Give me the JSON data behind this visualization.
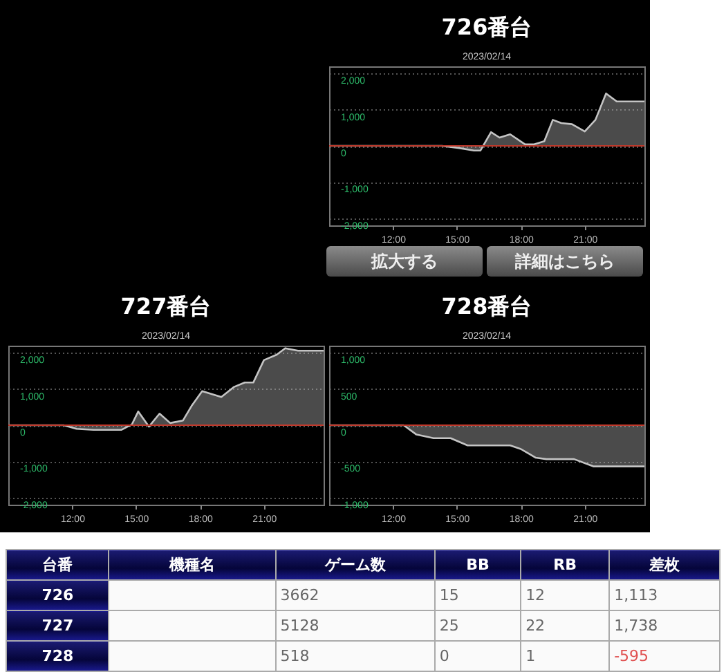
{
  "chart_data": [
    {
      "type": "area",
      "title": "726番台",
      "subtitle": "2023/02/14",
      "x": [
        9,
        14.3,
        15.1,
        15.8,
        16.1,
        16.6,
        17.0,
        17.5,
        18.2,
        18.6,
        19.1,
        19.5,
        19.9,
        20.4,
        21.0,
        21.5,
        22.0,
        22.5,
        23.8
      ],
      "series": [
        {
          "color": "#c4c4c4",
          "values": [
            0,
            0,
            -60,
            -130,
            -130,
            380,
            230,
            320,
            40,
            40,
            130,
            720,
            630,
            600,
            400,
            720,
            1450,
            1230,
            1230
          ]
        }
      ],
      "xlim": [
        9,
        23.8
      ],
      "xticks": [
        {
          "value": 12,
          "label": "12:00"
        },
        {
          "value": 15,
          "label": "15:00"
        },
        {
          "value": 18,
          "label": "18:00"
        },
        {
          "value": 21,
          "label": "21:00"
        }
      ],
      "ylim": [
        -2200,
        2200
      ],
      "yticks": [
        {
          "value": -2000,
          "label": "-2,000"
        },
        {
          "value": -1000,
          "label": "-1,000"
        },
        0,
        {
          "value": 1000,
          "label": "1,000"
        },
        {
          "value": 2000,
          "label": "2,000"
        }
      ],
      "grid": "y",
      "ref_lines": [
        {
          "axis": "y",
          "value": 0,
          "color": "#c0392b"
        }
      ],
      "annotations": [
        "拡大する",
        "詳細はこちら"
      ]
    },
    {
      "type": "area",
      "title": "727番台",
      "subtitle": "2023/02/14",
      "x": [
        9,
        11.6,
        12.2,
        13.0,
        14.3,
        14.8,
        15.1,
        15.6,
        16.1,
        16.6,
        17.2,
        17.6,
        18.1,
        19.0,
        19.6,
        20.1,
        20.5,
        21.0,
        21.6,
        22.0,
        22.6,
        23.8
      ],
      "series": [
        {
          "color": "#c4c4c4",
          "values": [
            0,
            0,
            -100,
            -130,
            -130,
            20,
            380,
            -40,
            320,
            60,
            130,
            530,
            940,
            780,
            1060,
            1180,
            1180,
            1800,
            1950,
            2130,
            2060,
            2060
          ]
        }
      ],
      "xlim": [
        9,
        23.8
      ],
      "xticks": [
        {
          "value": 12,
          "label": "12:00"
        },
        {
          "value": 15,
          "label": "15:00"
        },
        {
          "value": 18,
          "label": "18:00"
        },
        {
          "value": 21,
          "label": "21:00"
        }
      ],
      "ylim": [
        -2200,
        2200
      ],
      "yticks": [
        {
          "value": -2000,
          "label": "-2,000"
        },
        {
          "value": -1000,
          "label": "-1,000"
        },
        0,
        {
          "value": 1000,
          "label": "1,000"
        },
        {
          "value": 2000,
          "label": "2,000"
        }
      ],
      "grid": "y",
      "ref_lines": [
        {
          "axis": "y",
          "value": 0,
          "color": "#c0392b"
        }
      ]
    },
    {
      "type": "area",
      "title": "728番台",
      "subtitle": "2023/02/14",
      "x": [
        9,
        12.5,
        13.1,
        13.9,
        14.7,
        15.5,
        17.5,
        18.0,
        18.7,
        19.2,
        20.5,
        21.4,
        23.8
      ],
      "series": [
        {
          "color": "#c4c4c4",
          "values": [
            0,
            0,
            -130,
            -180,
            -180,
            -280,
            -280,
            -330,
            -450,
            -470,
            -470,
            -570,
            -570
          ]
        }
      ],
      "xlim": [
        9,
        23.8
      ],
      "xticks": [
        {
          "value": 12,
          "label": "12:00"
        },
        {
          "value": 15,
          "label": "15:00"
        },
        {
          "value": 18,
          "label": "18:00"
        },
        {
          "value": 21,
          "label": "21:00"
        }
      ],
      "ylim": [
        -1100,
        1100
      ],
      "yticks": [
        {
          "value": -1000,
          "label": "-1,000"
        },
        -500,
        0,
        500,
        {
          "value": 1000,
          "label": "1,000"
        }
      ],
      "grid": "y",
      "ref_lines": [
        {
          "axis": "y",
          "value": 0,
          "color": "#c0392b"
        }
      ]
    },
    {
      "type": "other",
      "annotations": [
        "台番",
        "機種名",
        "ゲーム数",
        "BB",
        "RB",
        "差枚",
        "726",
        null,
        "3662",
        "15",
        "12",
        "1,113",
        "727",
        null,
        "5128",
        "25",
        "22",
        "1,738",
        "728",
        null,
        "518",
        "0",
        "1",
        "-595"
      ]
    }
  ]
}
